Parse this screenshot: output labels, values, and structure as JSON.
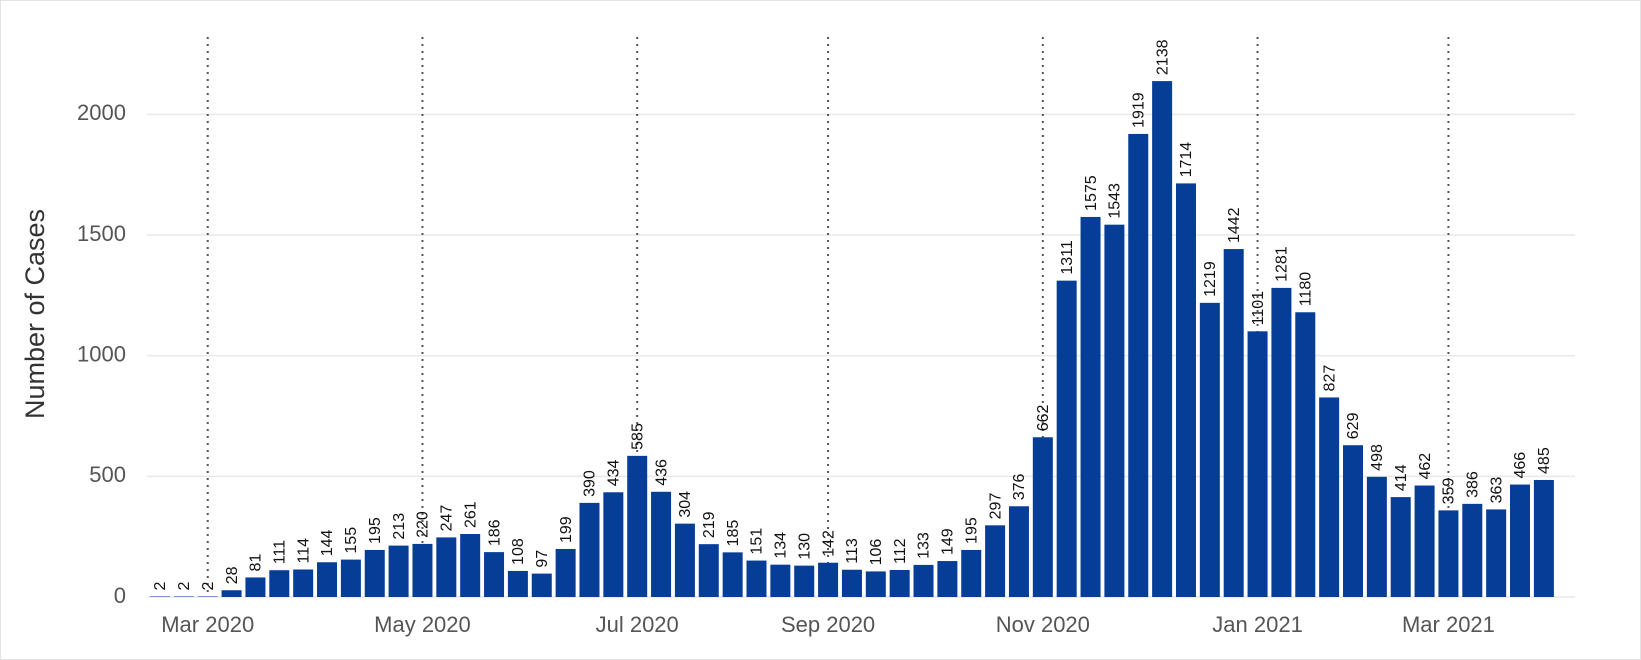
{
  "chart_data": {
    "type": "bar",
    "y_label": "Number of Cases",
    "categories": [
      null,
      null,
      "Mar 2020",
      null,
      null,
      null,
      null,
      null,
      null,
      null,
      null,
      "May 2020",
      null,
      null,
      null,
      null,
      null,
      null,
      null,
      null,
      "Jul 2020",
      null,
      null,
      null,
      null,
      null,
      null,
      null,
      "Sep 2020",
      null,
      null,
      null,
      null,
      null,
      null,
      null,
      null,
      "Nov 2020",
      null,
      null,
      null,
      null,
      null,
      null,
      null,
      null,
      "Jan 2021",
      null,
      null,
      null,
      null,
      null,
      null,
      null,
      "Mar 2021",
      null,
      null,
      null,
      null
    ],
    "values": [
      2,
      2,
      2,
      28,
      81,
      111,
      114,
      144,
      155,
      195,
      213,
      220,
      247,
      261,
      186,
      108,
      97,
      199,
      390,
      434,
      585,
      436,
      304,
      219,
      185,
      151,
      134,
      130,
      142,
      113,
      106,
      112,
      133,
      149,
      195,
      297,
      376,
      662,
      1311,
      1575,
      1543,
      1919,
      2138,
      1714,
      1219,
      1442,
      1101,
      1281,
      1180,
      827,
      629,
      498,
      414,
      462,
      359,
      386,
      363,
      466,
      485
    ],
    "color": "#063d96",
    "ylim": [
      0,
      2300
    ],
    "yticks": [
      0,
      500,
      1000,
      1500,
      2000
    ],
    "grid": true
  }
}
